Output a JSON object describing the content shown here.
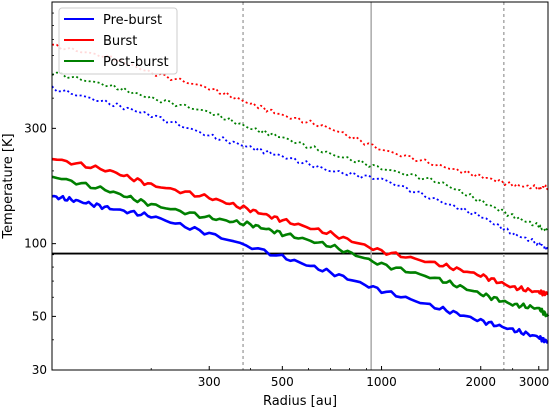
{
  "chart_data": {
    "type": "line",
    "xlabel": "Radius [au]",
    "ylabel": "Temperature [K]",
    "xscale": "log",
    "yscale": "log",
    "xlim": [
      100,
      3200
    ],
    "ylim": [
      30,
      1000
    ],
    "xticks": [
      {
        "value": 300,
        "label": "300"
      },
      {
        "value": 500,
        "label": "500"
      },
      {
        "value": 1000,
        "label": "1000"
      },
      {
        "value": 2000,
        "label": "2000"
      },
      {
        "value": 3000,
        "label": "3000"
      }
    ],
    "yticks": [
      {
        "value": 30,
        "label": "30"
      },
      {
        "value": 50,
        "label": "50"
      },
      {
        "value": 100,
        "label": "100"
      },
      {
        "value": 300,
        "label": "300"
      }
    ],
    "legend_position": "top-left",
    "series": [
      {
        "name": "Pre-burst",
        "color": "#0000ff",
        "style": "solid",
        "x": [
          100,
          120,
          150,
          200,
          300,
          500,
          700,
          1000,
          1500,
          2000,
          2500,
          3000,
          3200
        ],
        "y": [
          157,
          150,
          140,
          130,
          110,
          88,
          76,
          64,
          54,
          48,
          44,
          41,
          39
        ]
      },
      {
        "name": "Pre-burst",
        "color": "#0000ff",
        "style": "dotted",
        "x": [
          100,
          150,
          200,
          300,
          400,
          500,
          700,
          1000,
          1500,
          2000,
          2500,
          3000,
          3200
        ],
        "y": [
          440,
          380,
          340,
          280,
          250,
          230,
          200,
          185,
          150,
          130,
          110,
          100,
          95
        ]
      },
      {
        "name": "Burst",
        "color": "#ff0000",
        "style": "solid",
        "x": [
          100,
          150,
          200,
          300,
          400,
          500,
          700,
          1000,
          1500,
          2000,
          2500,
          3000,
          3200
        ],
        "y": [
          225,
          200,
          175,
          155,
          138,
          125,
          110,
          93,
          82,
          74,
          66,
          63,
          62
        ]
      },
      {
        "name": "Burst",
        "color": "#ff0000",
        "style": "dotted",
        "x": [
          100,
          150,
          200,
          300,
          400,
          500,
          700,
          1000,
          1500,
          2000,
          2500,
          3000,
          3200
        ],
        "y": [
          660,
          590,
          510,
          440,
          380,
          340,
          300,
          245,
          210,
          190,
          175,
          170,
          172
        ]
      },
      {
        "name": "Post-burst",
        "color": "#008000",
        "style": "solid",
        "x": [
          100,
          150,
          200,
          300,
          400,
          500,
          700,
          1000,
          1500,
          2000,
          2500,
          3000,
          3200
        ],
        "y": [
          190,
          165,
          145,
          128,
          120,
          110,
          98,
          82,
          71,
          62,
          56,
          54,
          50
        ]
      },
      {
        "name": "Post-burst",
        "color": "#008000",
        "style": "dotted",
        "x": [
          100,
          150,
          200,
          300,
          400,
          500,
          700,
          1000,
          1500,
          2000,
          2500,
          3000,
          3200
        ],
        "y": [
          510,
          450,
          400,
          350,
          300,
          275,
          235,
          205,
          180,
          150,
          130,
          118,
          112
        ]
      }
    ],
    "reference_lines": [
      {
        "orientation": "horizontal",
        "value": 91,
        "color": "#000000",
        "style": "solid"
      },
      {
        "orientation": "vertical",
        "value": 380,
        "color": "#aaaaaa",
        "style": "dotted"
      },
      {
        "orientation": "vertical",
        "value": 930,
        "color": "#aaaaaa",
        "style": "solid"
      },
      {
        "orientation": "vertical",
        "value": 2350,
        "color": "#aaaaaa",
        "style": "dotted"
      }
    ]
  }
}
